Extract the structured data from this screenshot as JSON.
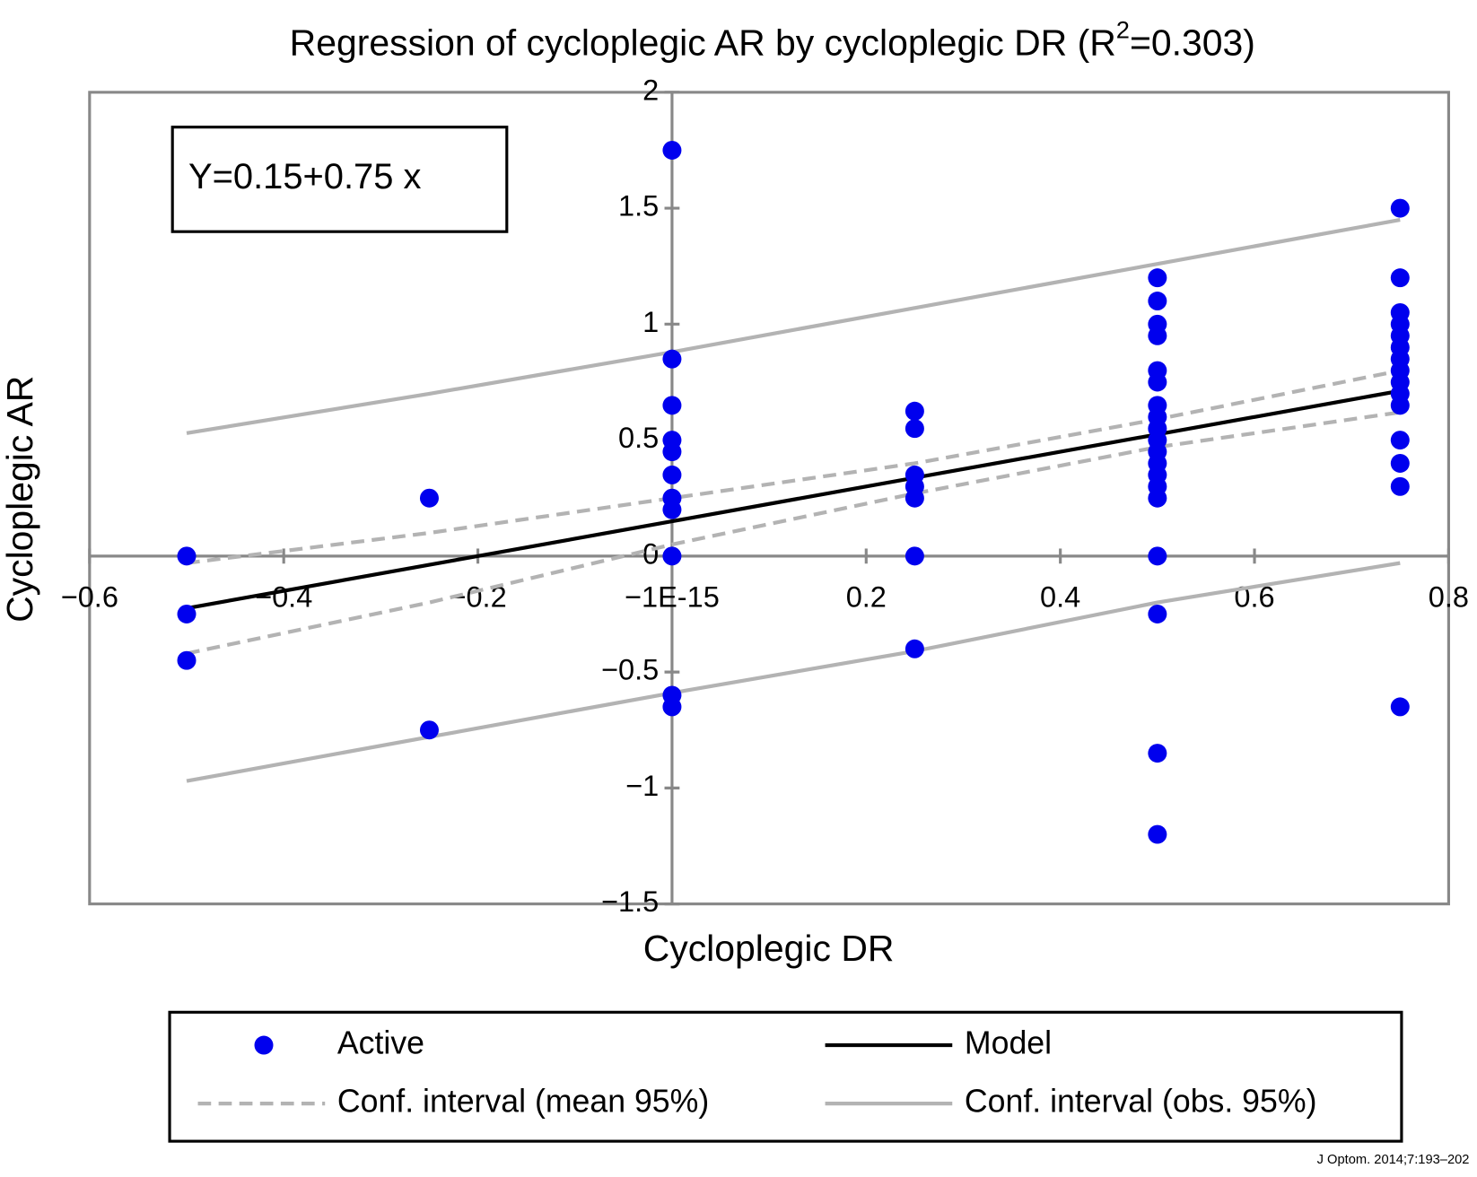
{
  "chart_data": {
    "type": "scatter",
    "title_parts": [
      "Regression of cycloplegic AR by cycloplegic DR (R",
      "2",
      "=0.303)"
    ],
    "annotation": "Y=0.15+0.75 x",
    "x_label": "Cycloplegic DR",
    "y_label": "Cycloplegic AR",
    "source": "J Optom. 2014;7:193–202",
    "xlim": [
      -0.6,
      0.8
    ],
    "ylim": [
      -1.5,
      2
    ],
    "xticks": [
      {
        "value": -0.6,
        "label": "−0.6"
      },
      {
        "value": -0.4,
        "label": "−0.4"
      },
      {
        "value": -0.2,
        "label": "−0.2"
      },
      {
        "value": -1e-15,
        "label": "−1E-15"
      },
      0.2,
      0.4,
      0.6,
      0.8
    ],
    "yticks": [
      2,
      1.5,
      1,
      0.5,
      0,
      {
        "value": -0.5,
        "label": "−0.5"
      },
      {
        "value": -1,
        "label": "−1"
      },
      {
        "value": -1.5,
        "label": "−1.5"
      }
    ],
    "series": [
      {
        "name": "Active",
        "type": "scatter",
        "color": "#0000ee",
        "x": [
          -0.5,
          -0.5,
          -0.5,
          -0.25,
          -0.25,
          0,
          0,
          0,
          0,
          0,
          0,
          0,
          0,
          0,
          0,
          0,
          0.25,
          0.25,
          0.25,
          0.25,
          0.25,
          0.25,
          0.25,
          0.5,
          0.5,
          0.5,
          0.5,
          0.5,
          0.5,
          0.5,
          0.5,
          0.5,
          0.5,
          0.5,
          0.5,
          0.5,
          0.5,
          0.5,
          0.5,
          0.5,
          0.5,
          0.5,
          0.75,
          0.75,
          0.75,
          0.75,
          0.75,
          0.75,
          0.75,
          0.75,
          0.75,
          0.75,
          0.75,
          0.75,
          0.75,
          0.75,
          0.75
        ],
        "values": [
          0,
          -0.25,
          -0.45,
          0.25,
          -0.75,
          1.75,
          0.85,
          0.65,
          0.5,
          0.45,
          0.35,
          0.25,
          0.2,
          0,
          -0.6,
          -0.65,
          0.625,
          0.55,
          0.35,
          0.3,
          0.25,
          0,
          -0.4,
          1.2,
          1.1,
          1,
          0.95,
          0.8,
          0.75,
          0.65,
          0.6,
          0.55,
          0.5,
          0.45,
          0.4,
          0.35,
          0.3,
          0.25,
          0,
          -0.25,
          -0.85,
          -1.2,
          1.5,
          1.2,
          1.05,
          1,
          0.95,
          0.9,
          0.85,
          0.8,
          0.75,
          0.7,
          0.65,
          0.5,
          0.4,
          0.3,
          -0.65
        ]
      },
      {
        "name": "Model",
        "type": "line",
        "color": "#000000",
        "dashed": false,
        "x": [
          -0.5,
          -0.25,
          0,
          0.25,
          0.5,
          0.75
        ],
        "values": [
          -0.225,
          -0.0375,
          0.15,
          0.3375,
          0.525,
          0.7125
        ]
      },
      {
        "name": "Conf. interval (mean 95%)",
        "type": "line",
        "color": "#b3b3b3",
        "dashed": true,
        "x": [
          -0.5,
          -0.25,
          0,
          0.25,
          0.5,
          0.75
        ],
        "values": [
          -0.03,
          0.1,
          0.25,
          0.4,
          0.59,
          0.8
        ]
      },
      {
        "name": "Conf. interval (mean 95%)",
        "type": "line",
        "color": "#b3b3b3",
        "dashed": true,
        "x": [
          -0.5,
          -0.25,
          0,
          0.25,
          0.5,
          0.75
        ],
        "values": [
          -0.42,
          -0.2,
          0.05,
          0.27,
          0.47,
          0.62
        ]
      },
      {
        "name": "Conf. interval (obs. 95%)",
        "type": "line",
        "color": "#b3b3b3",
        "dashed": false,
        "x": [
          -0.5,
          -0.25,
          0,
          0.25,
          0.5,
          0.75
        ],
        "values": [
          0.53,
          0.7,
          0.88,
          1.07,
          1.26,
          1.45
        ]
      },
      {
        "name": "Conf. interval (obs. 95%)",
        "type": "line",
        "color": "#b3b3b3",
        "dashed": false,
        "x": [
          -0.5,
          -0.25,
          0,
          0.25,
          0.5,
          0.75
        ],
        "values": [
          -0.97,
          -0.78,
          -0.59,
          -0.41,
          -0.2,
          -0.03
        ]
      }
    ]
  }
}
